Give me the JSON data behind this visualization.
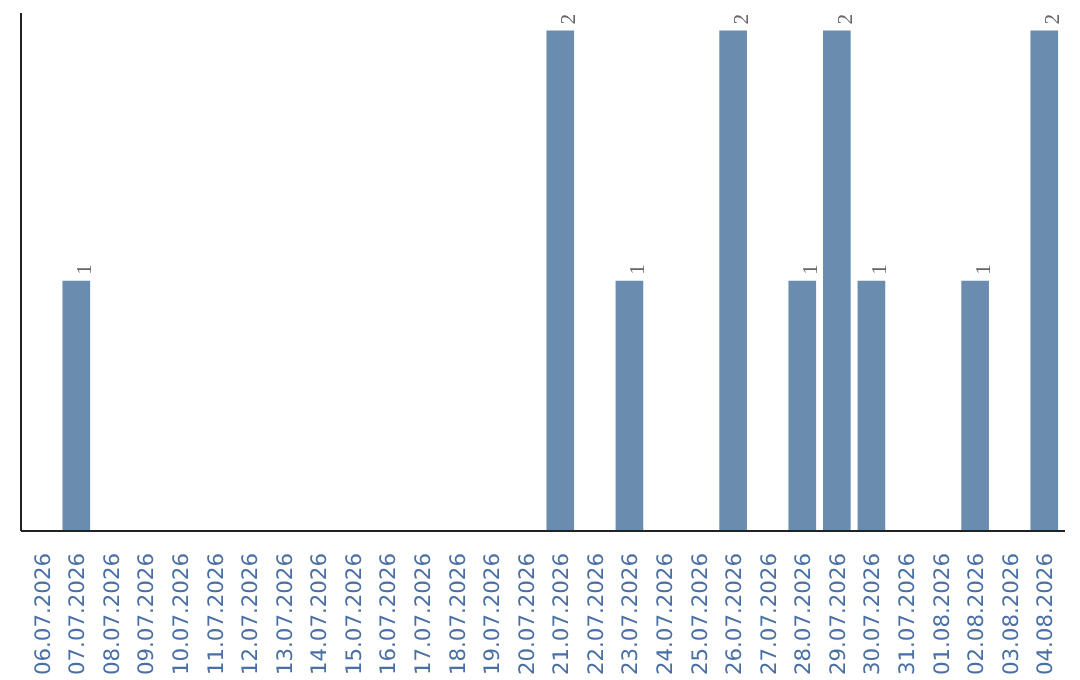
{
  "chart_data": {
    "type": "bar",
    "categories": [
      "06.07.2026",
      "07.07.2026",
      "08.07.2026",
      "09.07.2026",
      "10.07.2026",
      "11.07.2026",
      "12.07.2026",
      "13.07.2026",
      "14.07.2026",
      "15.07.2026",
      "16.07.2026",
      "17.07.2026",
      "18.07.2026",
      "19.07.2026",
      "20.07.2026",
      "21.07.2026",
      "22.07.2026",
      "23.07.2026",
      "24.07.2026",
      "25.07.2026",
      "26.07.2026",
      "27.07.2026",
      "28.07.2026",
      "29.07.2026",
      "30.07.2026",
      "31.07.2026",
      "01.08.2026",
      "02.08.2026",
      "03.08.2026",
      "04.08.2026"
    ],
    "values": [
      0,
      1,
      0,
      0,
      0,
      0,
      0,
      0,
      0,
      0,
      0,
      0,
      0,
      0,
      0,
      2,
      0,
      1,
      0,
      0,
      2,
      0,
      1,
      2,
      1,
      0,
      0,
      1,
      0,
      2
    ],
    "value_labels": [
      null,
      "1",
      null,
      null,
      null,
      null,
      null,
      null,
      null,
      null,
      null,
      null,
      null,
      null,
      null,
      "2",
      null,
      "1",
      null,
      null,
      "2",
      null,
      "1",
      "2",
      "1",
      null,
      null,
      "1",
      null,
      "2"
    ],
    "color": "#6a8caf",
    "ylim": [
      0,
      2
    ]
  }
}
